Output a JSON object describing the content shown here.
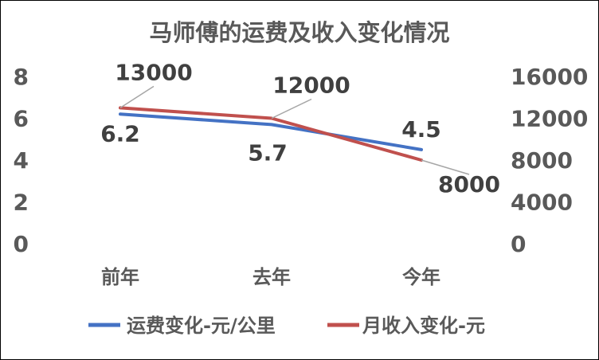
{
  "chart_data": {
    "type": "line",
    "title": "马师傅的运费及收入变化情况",
    "categories": [
      "前年",
      "去年",
      "今年"
    ],
    "series": [
      {
        "name": "运费变化-元/公里",
        "values": [
          6.2,
          5.7,
          4.5
        ],
        "axis": "left",
        "color": "#4472C4",
        "labels": [
          "6.2",
          "5.7",
          "4.5"
        ]
      },
      {
        "name": "月收入变化-元",
        "values": [
          13000,
          12000,
          8000
        ],
        "axis": "right",
        "color": "#C0504D",
        "labels": [
          "13000",
          "12000",
          "8000"
        ]
      }
    ],
    "y_left": {
      "min": 0,
      "max": 8,
      "ticks": [
        "0",
        "2",
        "4",
        "6",
        "8"
      ]
    },
    "y_right": {
      "min": 0,
      "max": 16000,
      "ticks": [
        "0",
        "4000",
        "8000",
        "12000",
        "16000"
      ]
    },
    "grid": false,
    "legend_position": "bottom",
    "leader_color": "#A6A6A6"
  }
}
